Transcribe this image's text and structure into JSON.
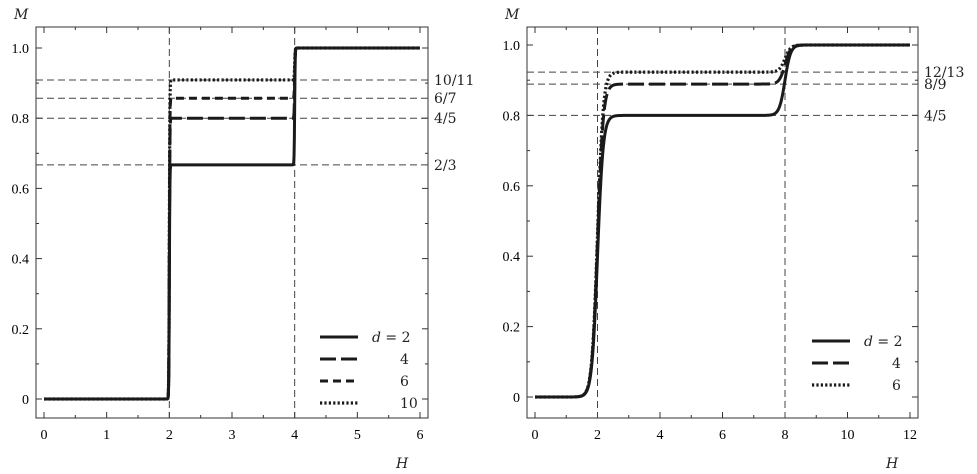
{
  "chart_data": [
    {
      "type": "line",
      "panel": "left",
      "xlabel": "H",
      "ylabel": "M",
      "xlim": [
        0,
        6
      ],
      "ylim": [
        0,
        1.0
      ],
      "xticks": [
        0,
        1,
        2,
        3,
        4,
        5,
        6
      ],
      "xtick_labels": [
        "0",
        "1",
        "2",
        "3",
        "4",
        "5",
        "6"
      ],
      "yticks": [
        0,
        0.2,
        0.4,
        0.6,
        0.8,
        1.0
      ],
      "ytick_labels": [
        "0",
        "0.2",
        "0.4",
        "0.6",
        "0.8",
        "1.0"
      ],
      "grid": false,
      "legend_position": "bottom-right",
      "reference_lines": {
        "vertical": [
          2,
          4
        ],
        "horizontal": [
          {
            "y": 0.909,
            "label": "10/11"
          },
          {
            "y": 0.857,
            "label": "6/7"
          },
          {
            "y": 0.8,
            "label": "4/5"
          },
          {
            "y": 0.667,
            "label": "2/3"
          }
        ]
      },
      "transitions": [
        2,
        4
      ],
      "sharpness": 0.004,
      "series": [
        {
          "name": "d = 2",
          "style": "solid",
          "steps": [
            0,
            0.667,
            1.0
          ]
        },
        {
          "name": "4",
          "style": "longdash",
          "steps": [
            0,
            0.8,
            1.0
          ]
        },
        {
          "name": "6",
          "style": "dash",
          "steps": [
            0,
            0.857,
            1.0
          ]
        },
        {
          "name": "10",
          "style": "dot",
          "steps": [
            0,
            0.909,
            1.0
          ]
        }
      ]
    },
    {
      "type": "line",
      "panel": "right",
      "xlabel": "H",
      "ylabel": "M",
      "xlim": [
        0,
        12
      ],
      "ylim": [
        0,
        1.0
      ],
      "xticks": [
        0,
        2,
        4,
        6,
        8,
        10,
        12
      ],
      "xtick_labels": [
        "0",
        "2",
        "4",
        "6",
        "8",
        "10",
        "12"
      ],
      "yticks": [
        0,
        0.2,
        0.4,
        0.6,
        0.8,
        1.0
      ],
      "ytick_labels": [
        "0",
        "0.2",
        "0.4",
        "0.6",
        "0.8",
        "1.0"
      ],
      "grid": false,
      "legend_position": "bottom-right",
      "reference_lines": {
        "vertical": [
          2,
          8
        ],
        "horizontal": [
          {
            "y": 0.923,
            "label": "12/13"
          },
          {
            "y": 0.889,
            "label": "8/9"
          },
          {
            "y": 0.8,
            "label": "4/5"
          }
        ]
      },
      "transitions": [
        2,
        8
      ],
      "sharpness": 0.09,
      "series": [
        {
          "name": "d = 2",
          "style": "solid",
          "steps": [
            0,
            0.8,
            1.0
          ]
        },
        {
          "name": "4",
          "style": "longdash",
          "steps": [
            0,
            0.889,
            1.0
          ]
        },
        {
          "name": "6",
          "style": "dot",
          "steps": [
            0,
            0.923,
            1.0
          ]
        }
      ]
    }
  ]
}
